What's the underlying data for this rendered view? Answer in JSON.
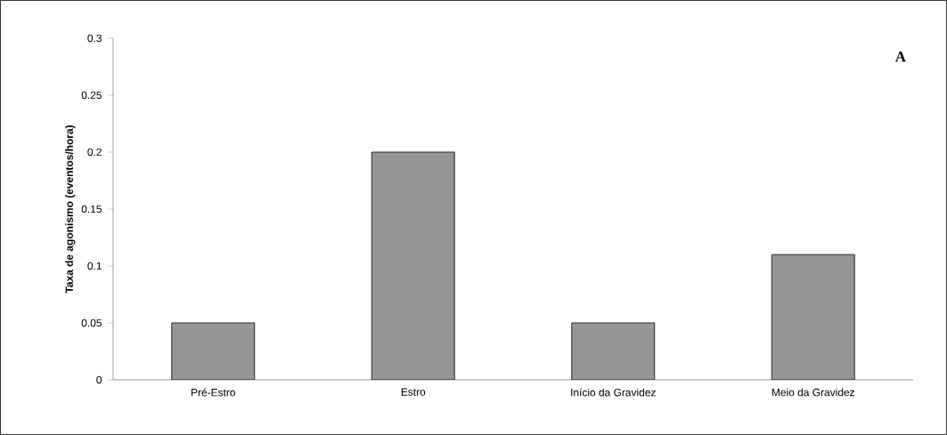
{
  "chart_data": {
    "type": "bar",
    "ylabel": "Taxa de agonismo (eventos/hora)",
    "categories": [
      "Pré-Estro",
      "Estro",
      "Início da Gravidez",
      "Meio da Gravidez"
    ],
    "values": [
      0.05,
      0.2,
      0.05,
      0.11
    ],
    "color": "#969696",
    "ylim": [
      0,
      0.3
    ],
    "yticks": [
      0,
      0.05,
      0.1,
      0.15,
      0.2,
      0.25,
      0.3
    ],
    "annotations": [
      "A"
    ]
  }
}
